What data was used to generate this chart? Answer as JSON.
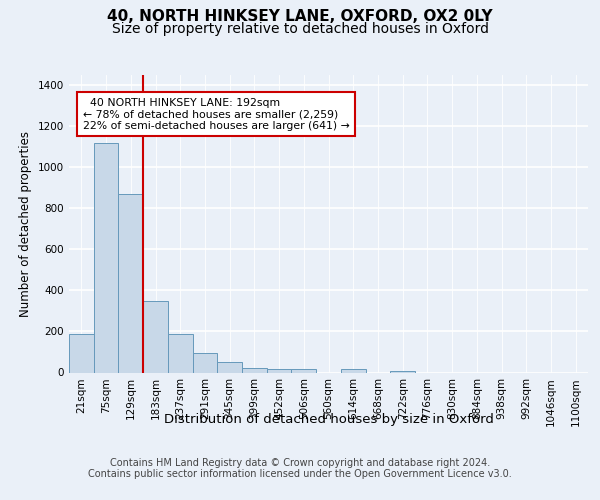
{
  "title1": "40, NORTH HINKSEY LANE, OXFORD, OX2 0LY",
  "title2": "Size of property relative to detached houses in Oxford",
  "xlabel": "Distribution of detached houses by size in Oxford",
  "ylabel": "Number of detached properties",
  "categories": [
    "21sqm",
    "75sqm",
    "129sqm",
    "183sqm",
    "237sqm",
    "291sqm",
    "345sqm",
    "399sqm",
    "452sqm",
    "506sqm",
    "560sqm",
    "614sqm",
    "668sqm",
    "722sqm",
    "776sqm",
    "830sqm",
    "884sqm",
    "938sqm",
    "992sqm",
    "1046sqm",
    "1100sqm"
  ],
  "values": [
    190,
    1120,
    870,
    350,
    190,
    95,
    50,
    20,
    15,
    15,
    0,
    15,
    0,
    5,
    0,
    0,
    0,
    0,
    0,
    0,
    0
  ],
  "bar_color": "#c8d8e8",
  "bar_edge_color": "#6699bb",
  "vline_index": 3,
  "highlight_line_color": "#cc0000",
  "annotation_text": "  40 NORTH HINKSEY LANE: 192sqm\n← 78% of detached houses are smaller (2,259)\n22% of semi-detached houses are larger (641) →",
  "annotation_box_color": "#cc0000",
  "footer_text": "Contains HM Land Registry data © Crown copyright and database right 2024.\nContains public sector information licensed under the Open Government Licence v3.0.",
  "ylim": [
    0,
    1450
  ],
  "background_color": "#eaf0f8",
  "plot_bg_color": "#eaf0f8",
  "grid_color": "#ffffff",
  "title1_fontsize": 11,
  "title2_fontsize": 10,
  "xlabel_fontsize": 9.5,
  "ylabel_fontsize": 8.5,
  "tick_fontsize": 7.5,
  "footer_fontsize": 7
}
